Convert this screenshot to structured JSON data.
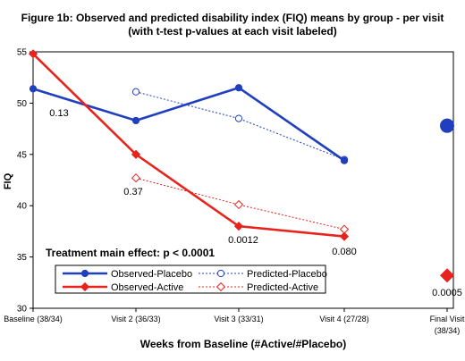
{
  "chart_data": {
    "type": "line",
    "title_line1": "Figure 1b: Observed and predicted disability index (FIQ) means by group - per visit",
    "title_line2": "(with t-test p-values at each visit labeled)",
    "xlabel": "Weeks from Baseline (#Active/#Placebo)",
    "ylabel": "FIQ",
    "ylim": [
      30,
      55
    ],
    "yticks": [
      30,
      35,
      40,
      45,
      50,
      55
    ],
    "categories": [
      {
        "label1": "Baseline (38/34)",
        "label2": ""
      },
      {
        "label1": "Visit 2 (36/33)",
        "label2": ""
      },
      {
        "label1": "Visit 3 (33/31)",
        "label2": ""
      },
      {
        "label1": "Visit 4 (27/28)",
        "label2": ""
      },
      {
        "label1": "Final Visit",
        "label2": "(38/34)"
      }
    ],
    "series": [
      {
        "name": "Observed-Placebo",
        "style": "observed",
        "marker": "circle",
        "color": "#1f3fbf",
        "values": [
          51.4,
          48.3,
          51.5,
          44.4,
          null
        ]
      },
      {
        "name": "Observed-Active",
        "style": "observed",
        "marker": "diamond",
        "color": "#e8231c",
        "values": [
          54.8,
          45.0,
          38.0,
          37.0,
          null
        ]
      },
      {
        "name": "Predicted-Placebo",
        "style": "predicted",
        "marker": "circle",
        "color": "#1f3fbf",
        "values": [
          null,
          51.1,
          48.5,
          44.5,
          null
        ]
      },
      {
        "name": "Predicted-Active",
        "style": "predicted",
        "marker": "diamond",
        "color": "#e8231c",
        "values": [
          null,
          42.7,
          40.1,
          37.7,
          null
        ]
      }
    ],
    "final_visit": {
      "placebo": 47.8,
      "active": 33.2
    },
    "pvalues": [
      "0.13",
      "0.37",
      "0.0012",
      "0.080",
      "0.0005"
    ],
    "annotation": "Treatment main effect: p < 0.0001",
    "legend_placement": "bottom-left",
    "grid": false
  }
}
